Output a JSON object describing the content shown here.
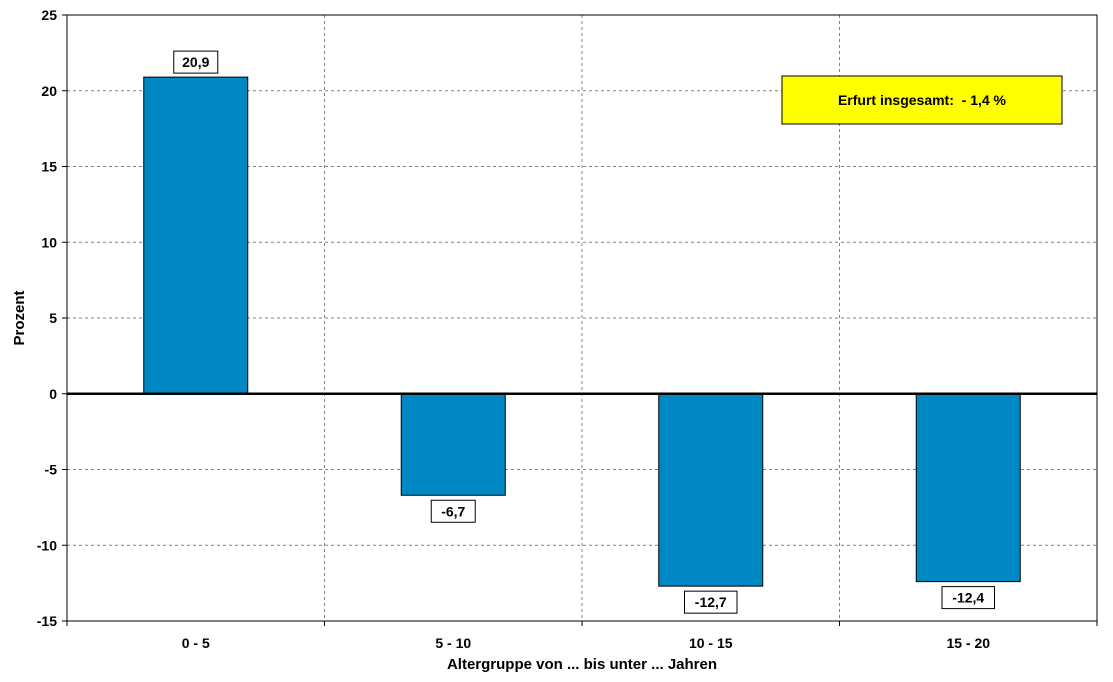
{
  "chart_data": {
    "type": "bar",
    "categories": [
      "0 - 5",
      "5 - 10",
      "10 - 15",
      "15 - 20"
    ],
    "values": [
      20.9,
      -6.7,
      -12.7,
      -12.4
    ],
    "value_labels": [
      "20,9",
      "-6,7",
      "-12,7",
      "-12,4"
    ],
    "xlabel": "Altergruppe von ... bis unter ... Jahren",
    "ylabel": "Prozent",
    "ylim": [
      -15,
      25
    ],
    "yticks": [
      -15,
      -10,
      -5,
      0,
      5,
      10,
      15,
      20,
      25
    ],
    "ytick_labels": [
      "-15",
      "-10",
      "-5",
      "0",
      "5",
      "10",
      "15",
      "20",
      "25"
    ],
    "grid": true,
    "legend": "none",
    "annotation": "Erfurt insgesamt:  - 1,4 %",
    "colors": {
      "bar": "#0088C4",
      "annotation_background": "#FFFF00",
      "grid": "#808080",
      "zero_line": "#000000"
    }
  }
}
